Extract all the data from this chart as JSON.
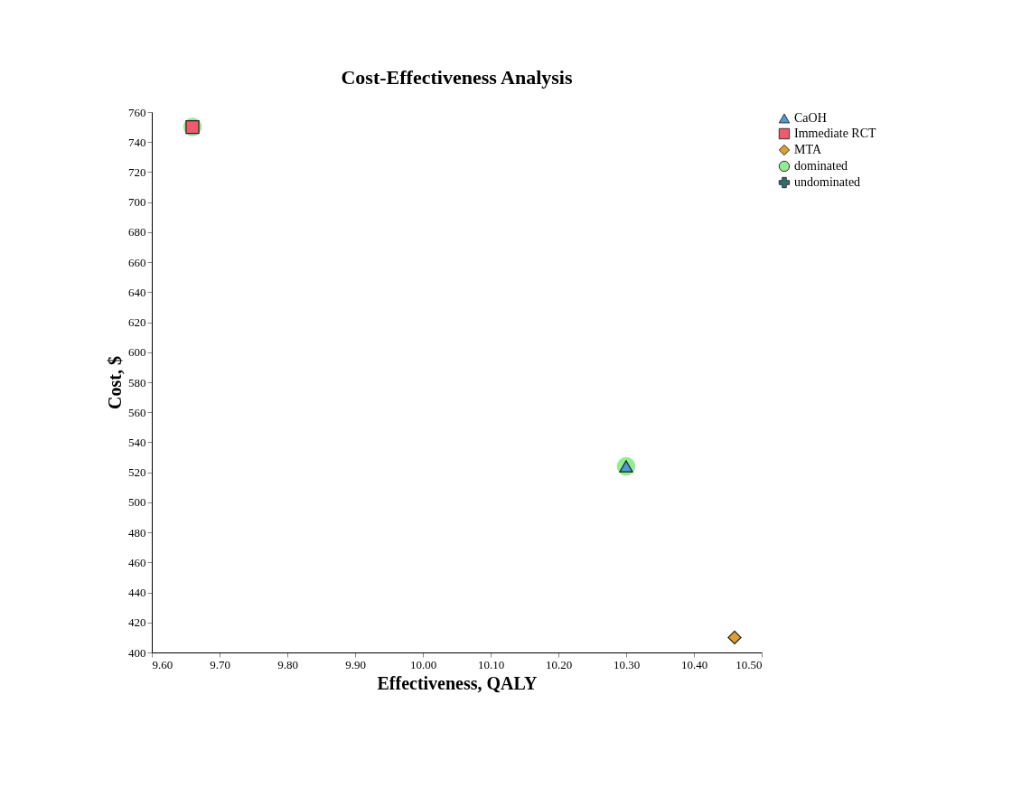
{
  "chart_data": {
    "type": "scatter",
    "title": "Cost-Effectiveness Analysis",
    "xlabel": "Effectiveness, QALY",
    "ylabel": "Cost, $",
    "xlim": [
      9.6,
      10.5
    ],
    "xticks": [
      {
        "value": 9.6,
        "label": "9.60"
      },
      {
        "value": 9.7,
        "label": "9.70"
      },
      {
        "value": 9.8,
        "label": "9.80"
      },
      {
        "value": 9.9,
        "label": "9.90"
      },
      {
        "value": 10.0,
        "label": "10.00"
      },
      {
        "value": 10.1,
        "label": "10.10"
      },
      {
        "value": 10.2,
        "label": "10.20"
      },
      {
        "value": 10.3,
        "label": "10.30"
      },
      {
        "value": 10.4,
        "label": "10.40"
      },
      {
        "value": 10.5,
        "label": "10.50"
      }
    ],
    "ylim": [
      400,
      760
    ],
    "yticks": [
      400,
      420,
      440,
      460,
      480,
      500,
      520,
      540,
      560,
      580,
      600,
      620,
      640,
      660,
      680,
      700,
      720,
      740,
      760
    ],
    "grid": false,
    "legend": "right",
    "series": [
      {
        "name": "dominated",
        "color": "#90ee90",
        "marker": "circle",
        "x": [
          9.66,
          10.3
        ],
        "values": [
          750,
          524
        ]
      },
      {
        "name": "CaOH",
        "color": "#4b9cd3",
        "marker": "triangle",
        "x": [
          10.3
        ],
        "values": [
          524
        ]
      },
      {
        "name": "Immediate RCT",
        "color": "#f05a6e",
        "marker": "square",
        "x": [
          9.66
        ],
        "values": [
          750
        ]
      },
      {
        "name": "MTA",
        "color": "#daa030",
        "marker": "diamond",
        "x": [
          10.46
        ],
        "values": [
          410
        ]
      },
      {
        "name": "undominated",
        "color": "#2f6f6f",
        "marker": "cross"
      }
    ]
  }
}
